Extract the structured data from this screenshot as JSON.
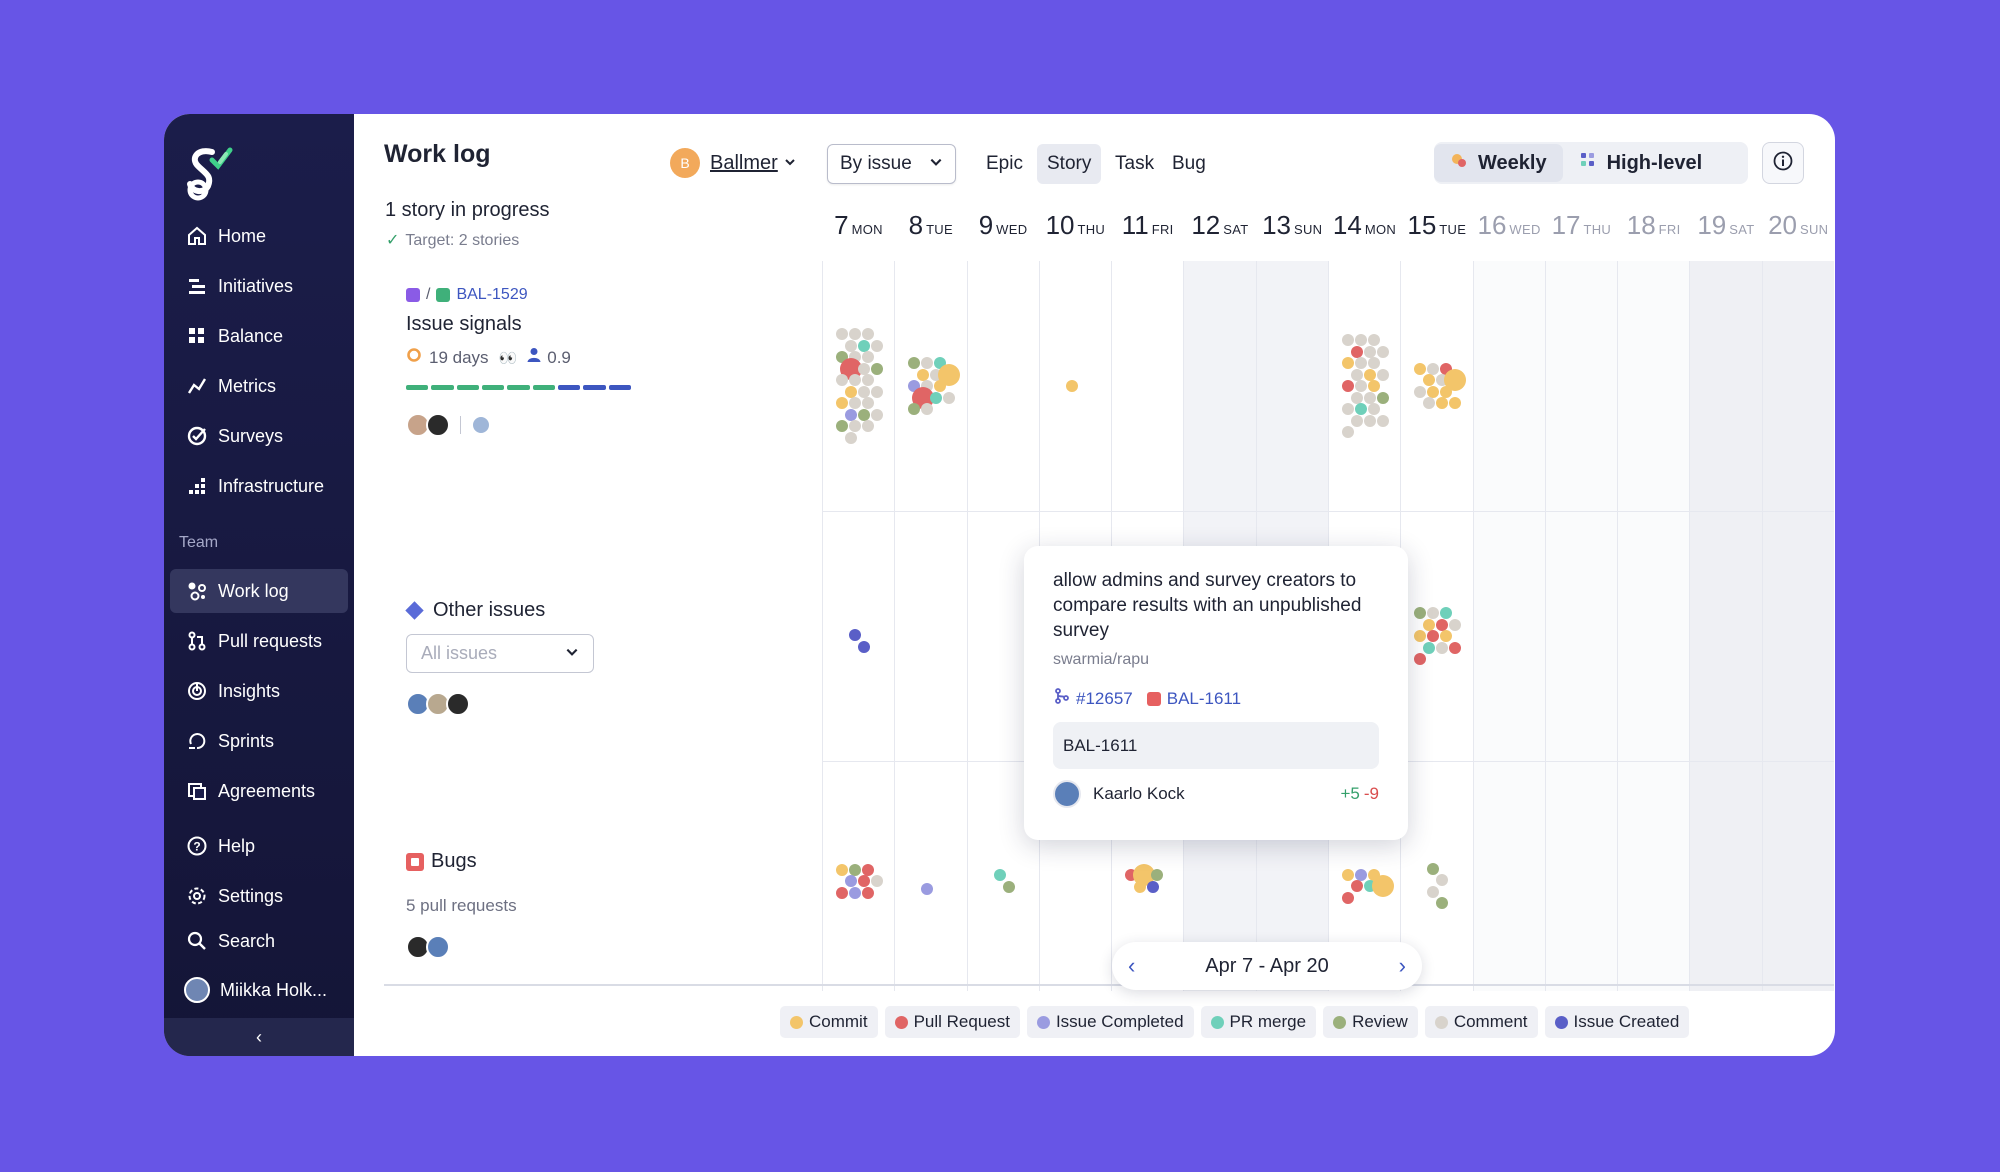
{
  "sidebar": {
    "nav": [
      {
        "label": "Home",
        "icon": "home-icon"
      },
      {
        "label": "Initiatives",
        "icon": "initiatives-icon"
      },
      {
        "label": "Balance",
        "icon": "grid-icon"
      },
      {
        "label": "Metrics",
        "icon": "trend-icon"
      },
      {
        "label": "Surveys",
        "icon": "survey-icon"
      },
      {
        "label": "Infrastructure",
        "icon": "infra-icon"
      }
    ],
    "team_label": "Team",
    "team_nav": [
      {
        "label": "Work log",
        "icon": "worklog-icon",
        "active": true
      },
      {
        "label": "Pull requests",
        "icon": "pull-request-icon"
      },
      {
        "label": "Insights",
        "icon": "insights-icon"
      },
      {
        "label": "Sprints",
        "icon": "sprint-icon"
      },
      {
        "label": "Agreements",
        "icon": "agreements-icon"
      }
    ],
    "bottom_nav": [
      {
        "label": "Help",
        "icon": "help-icon"
      },
      {
        "label": "Settings",
        "icon": "gear-icon"
      },
      {
        "label": "Search",
        "icon": "search-icon"
      }
    ],
    "user": "Miikka Holk...",
    "collapse": "‹"
  },
  "header": {
    "title": "Work log",
    "team_badge": "B",
    "team_name": "Ballmer",
    "group_by": "By issue",
    "types": [
      "Epic",
      "Story",
      "Task",
      "Bug"
    ],
    "active_type": "Story",
    "views": [
      "Weekly",
      "High-level"
    ],
    "active_view": "Weekly"
  },
  "summary": {
    "headline": "1 story in progress",
    "target": "Target: 2 stories"
  },
  "days": [
    {
      "num": "7",
      "name": "MON"
    },
    {
      "num": "8",
      "name": "TUE"
    },
    {
      "num": "9",
      "name": "WED"
    },
    {
      "num": "10",
      "name": "THU"
    },
    {
      "num": "11",
      "name": "FRI"
    },
    {
      "num": "12",
      "name": "SAT"
    },
    {
      "num": "13",
      "name": "SUN"
    },
    {
      "num": "14",
      "name": "MON"
    },
    {
      "num": "15",
      "name": "TUE"
    },
    {
      "num": "16",
      "name": "WED"
    },
    {
      "num": "17",
      "name": "THU"
    },
    {
      "num": "18",
      "name": "FRI"
    },
    {
      "num": "19",
      "name": "SAT"
    },
    {
      "num": "20",
      "name": "SUN"
    }
  ],
  "lanes": {
    "story": {
      "link_sep": "/",
      "key": "BAL-1529",
      "title": "Issue signals",
      "days": "19 days",
      "eyes": "👀",
      "score": "0.9"
    },
    "other": {
      "title": "Other issues",
      "filter_placeholder": "All issues"
    },
    "bugs": {
      "title": "Bugs",
      "subtitle": "5 pull requests"
    }
  },
  "popup": {
    "title": "allow admins and survey creators to compare results with an unpublished survey",
    "repo": "swarmia/rapu",
    "pr": "#12657",
    "issue": "BAL-1611",
    "box": "BAL-1611",
    "author": "Kaarlo Kock",
    "additions": "+5",
    "deletions": "-9"
  },
  "pager": {
    "range": "Apr 7 - Apr 20",
    "prev": "‹",
    "next": "›"
  },
  "legend": [
    {
      "label": "Commit",
      "color": "#f3c56a"
    },
    {
      "label": "Pull Request",
      "color": "#e06565"
    },
    {
      "label": "Issue Completed",
      "color": "#9a9be0"
    },
    {
      "label": "PR merge",
      "color": "#6fd0ba"
    },
    {
      "label": "Review",
      "color": "#9bb07c"
    },
    {
      "label": "Comment",
      "color": "#d8d3cc"
    },
    {
      "label": "Issue Created",
      "color": "#5a5fc7"
    }
  ],
  "colors": {
    "background": "#6755e6",
    "sidebar": "#1b1d4a",
    "link": "#3d56c0",
    "progress_done": "#3fb07a",
    "progress_todo": "#3d56c0"
  }
}
